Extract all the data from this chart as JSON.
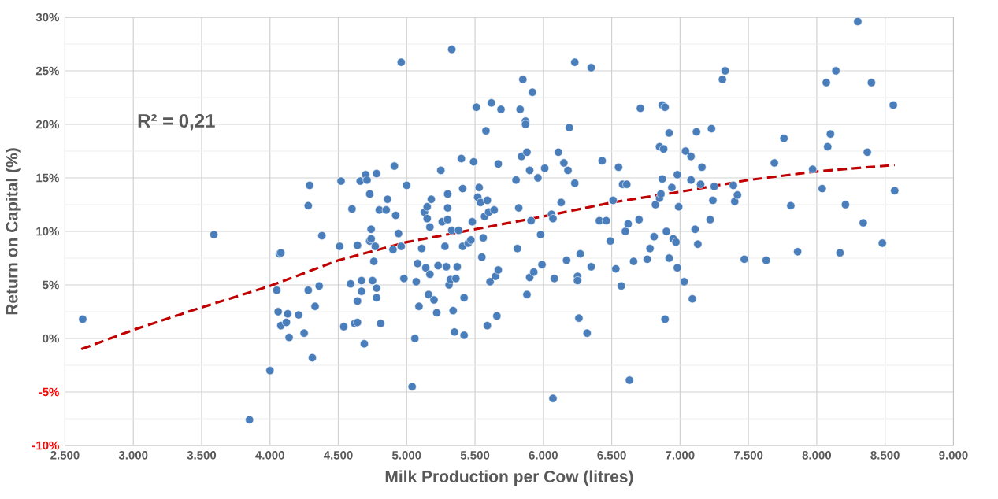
{
  "chart_data": {
    "type": "scatter",
    "xlabel": "Milk Production per Cow (litres)",
    "ylabel": "Return on Capital (%)",
    "annotations": [
      "R² = 0,21"
    ],
    "xlim": [
      2500,
      9000
    ],
    "ylim": [
      -10,
      30
    ],
    "xticks": [
      {
        "value": 2500,
        "label": "2.500"
      },
      {
        "value": 3000,
        "label": "3.000"
      },
      {
        "value": 3500,
        "label": "3.500"
      },
      {
        "value": 4000,
        "label": "4.000"
      },
      {
        "value": 4500,
        "label": "4.500"
      },
      {
        "value": 5000,
        "label": "5.000"
      },
      {
        "value": 5500,
        "label": "5.500"
      },
      {
        "value": 6000,
        "label": "6.000"
      },
      {
        "value": 6500,
        "label": "6.500"
      },
      {
        "value": 7000,
        "label": "7.000"
      },
      {
        "value": 7500,
        "label": "7.500"
      },
      {
        "value": 8000,
        "label": "8.000"
      },
      {
        "value": 8500,
        "label": "8.500"
      },
      {
        "value": 9000,
        "label": "9.000"
      }
    ],
    "yticks": [
      {
        "value": -10,
        "label": "-10%"
      },
      {
        "value": -5,
        "label": "-5%"
      },
      {
        "value": 0,
        "label": "0%"
      },
      {
        "value": 5,
        "label": "5%"
      },
      {
        "value": 10,
        "label": "10%"
      },
      {
        "value": 15,
        "label": "15%"
      },
      {
        "value": 20,
        "label": "20%"
      },
      {
        "value": 25,
        "label": "25%"
      },
      {
        "value": 30,
        "label": "30%"
      }
    ],
    "grid": true,
    "series": [
      {
        "color": "#4a7ebb",
        "marker": "circle",
        "x": [
          2630,
          3590,
          3850,
          4000,
          4050,
          4060,
          4070,
          4080,
          4080,
          4120,
          4130,
          4140,
          4210,
          4250,
          4280,
          4280,
          4290,
          4310,
          4330,
          4360,
          4380,
          4510,
          4520,
          4540,
          4590,
          4600,
          4620,
          4640,
          4640,
          4640,
          4660,
          4670,
          4670,
          4690,
          4700,
          4710,
          4730,
          4730,
          4740,
          4740,
          4750,
          4760,
          4770,
          4780,
          4780,
          4780,
          4800,
          4810,
          4850,
          4860,
          4900,
          4910,
          4920,
          4940,
          4960,
          4960,
          4980,
          5000,
          5040,
          5060,
          5070,
          5080,
          5090,
          5110,
          5130,
          5140,
          5150,
          5150,
          5160,
          5170,
          5170,
          5180,
          5200,
          5220,
          5230,
          5250,
          5260,
          5280,
          5290,
          5300,
          5300,
          5300,
          5310,
          5320,
          5330,
          5330,
          5340,
          5350,
          5360,
          5370,
          5380,
          5400,
          5410,
          5410,
          5420,
          5420,
          5450,
          5470,
          5480,
          5490,
          5510,
          5520,
          5530,
          5540,
          5550,
          5560,
          5570,
          5580,
          5590,
          5590,
          5600,
          5610,
          5620,
          5640,
          5650,
          5660,
          5670,
          5670,
          5690,
          5800,
          5810,
          5820,
          5830,
          5840,
          5850,
          5870,
          5870,
          5880,
          5880,
          5900,
          5900,
          5910,
          5920,
          5930,
          5960,
          5980,
          5990,
          6010,
          6060,
          6070,
          6070,
          6080,
          6110,
          6130,
          6150,
          6170,
          6180,
          6190,
          6230,
          6230,
          6250,
          6250,
          6260,
          6270,
          6320,
          6350,
          6350,
          6410,
          6430,
          6460,
          6490,
          6510,
          6530,
          6550,
          6570,
          6580,
          6600,
          6610,
          6620,
          6630,
          6660,
          6700,
          6710,
          6760,
          6780,
          6810,
          6820,
          6850,
          6850,
          6860,
          6870,
          6870,
          6880,
          6890,
          6890,
          6900,
          6920,
          6920,
          6940,
          6950,
          6970,
          6980,
          6980,
          6990,
          7030,
          7040,
          7080,
          7080,
          7090,
          7110,
          7120,
          7130,
          7150,
          7160,
          7220,
          7230,
          7240,
          7250,
          7310,
          7330,
          7390,
          7400,
          7420,
          7470,
          7630,
          7690,
          7760,
          7810,
          7860,
          7970,
          8040,
          8070,
          8080,
          8100,
          8140,
          8170,
          8210,
          8300,
          8340,
          8370,
          8400,
          8480,
          8560,
          8570
        ],
        "values": [
          1.8,
          9.7,
          -7.6,
          -3.0,
          4.5,
          2.5,
          7.9,
          8.0,
          1.2,
          1.5,
          2.3,
          0.1,
          2.2,
          0.5,
          4.5,
          12.4,
          14.3,
          -1.8,
          3.0,
          4.9,
          9.6,
          8.6,
          14.7,
          1.1,
          5.1,
          12.1,
          1.4,
          3.5,
          1.5,
          8.7,
          14.7,
          5.4,
          4.4,
          -0.5,
          15.3,
          14.8,
          13.5,
          9.1,
          9.3,
          10.2,
          5.4,
          7.2,
          8.6,
          15.4,
          4.7,
          3.8,
          12.0,
          1.4,
          12.0,
          13.0,
          8.3,
          16.1,
          11.5,
          9.8,
          8.6,
          25.8,
          5.6,
          14.3,
          -4.5,
          0.0,
          5.3,
          7.0,
          3.0,
          8.4,
          11.8,
          6.6,
          11.2,
          12.3,
          4.1,
          6.0,
          10.4,
          13.0,
          3.6,
          2.4,
          6.8,
          15.7,
          10.9,
          8.6,
          6.7,
          11.1,
          12.2,
          13.5,
          5.0,
          5.5,
          27.0,
          10.1,
          2.6,
          0.6,
          5.6,
          6.7,
          10.1,
          16.8,
          14.0,
          8.6,
          3.8,
          0.3,
          8.9,
          9.2,
          10.9,
          16.5,
          21.6,
          13.2,
          14.1,
          12.7,
          7.6,
          9.4,
          11.4,
          19.4,
          1.2,
          12.9,
          11.8,
          5.3,
          22.0,
          12.0,
          5.8,
          2.1,
          16.3,
          6.4,
          21.4,
          14.8,
          8.4,
          12.2,
          21.4,
          17.0,
          24.2,
          20.3,
          20.0,
          17.4,
          4.1,
          5.7,
          15.7,
          11.0,
          23.0,
          6.2,
          15.0,
          9.7,
          6.9,
          15.9,
          11.6,
          11.2,
          -5.6,
          5.6,
          17.4,
          12.7,
          16.4,
          7.3,
          15.7,
          19.7,
          25.8,
          14.5,
          5.8,
          5.4,
          1.9,
          7.9,
          0.5,
          25.3,
          6.7,
          11.0,
          16.6,
          11.0,
          9.1,
          12.9,
          6.5,
          16.0,
          4.9,
          14.4,
          10.0,
          14.4,
          10.7,
          -3.9,
          7.2,
          11.1,
          21.5,
          7.4,
          8.4,
          9.5,
          12.5,
          13.1,
          17.9,
          13.5,
          14.9,
          21.8,
          17.7,
          21.6,
          1.8,
          10.0,
          7.5,
          19.2,
          14.1,
          9.3,
          9.0,
          15.3,
          6.6,
          12.3,
          5.3,
          17.5,
          14.8,
          17.0,
          3.7,
          10.2,
          19.3,
          8.8,
          14.4,
          16.0,
          11.1,
          19.6,
          12.9,
          14.2,
          24.2,
          25.0,
          14.3,
          12.8,
          13.4,
          7.4,
          7.3,
          16.4,
          18.7,
          12.4,
          8.1,
          15.8,
          14.0,
          23.9,
          17.9,
          19.1,
          25.0,
          8.0,
          12.5,
          29.6,
          10.8,
          17.4,
          23.9,
          8.9,
          21.8,
          13.8
        ]
      },
      {
        "type": "line",
        "color": "#c00000",
        "line_style": "dashed",
        "marker": "none",
        "x": [
          2620,
          3000,
          3500,
          4000,
          4500,
          5000,
          5500,
          6000,
          6500,
          7000,
          7500,
          8000,
          8570
        ],
        "values": [
          -1.0,
          0.8,
          2.9,
          4.9,
          7.3,
          9.0,
          10.2,
          11.4,
          12.7,
          13.7,
          14.8,
          15.6,
          16.2
        ]
      }
    ]
  }
}
